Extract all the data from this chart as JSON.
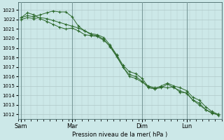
{
  "bg_color": "#cce8e8",
  "grid_color": "#b0c8c8",
  "vline_color": "#7a9a9a",
  "line_color": "#2d6a2d",
  "marker_color": "#2d6a2d",
  "xlabel": "Pression niveau de la mer( hPa )",
  "ylim": [
    1011.5,
    1023.8
  ],
  "yticks": [
    1012,
    1013,
    1014,
    1015,
    1016,
    1017,
    1018,
    1019,
    1020,
    1021,
    1022,
    1023
  ],
  "xtick_labels": [
    "Sam",
    "Mar",
    "Dim",
    "Lun"
  ],
  "xtick_positions": [
    0,
    8,
    19,
    26
  ],
  "vline_positions": [
    0,
    8,
    19,
    26
  ],
  "n_points": 32,
  "series": [
    [
      1022.2,
      1022.7,
      1022.5,
      1022.1,
      1021.8,
      1021.5,
      1021.2,
      1021.0,
      1021.1,
      1020.8,
      1020.4,
      1020.3,
      1020.2,
      1019.8,
      1019.2,
      1018.2,
      1017.0,
      1016.2,
      1016.0,
      1015.5,
      1014.8,
      1014.7,
      1014.8,
      1015.2,
      1014.8,
      1014.5,
      1014.2,
      1013.5,
      1013.0,
      1012.5,
      1012.1,
      1012.0
    ],
    [
      1022.2,
      1022.4,
      1022.3,
      1022.5,
      1022.7,
      1022.9,
      1022.8,
      1022.8,
      1022.3,
      1021.3,
      1020.8,
      1020.4,
      1020.3,
      1019.9,
      1019.1,
      1018.1,
      1017.0,
      1016.0,
      1015.8,
      1015.4,
      1015.0,
      1014.8,
      1014.9,
      1014.8,
      1014.9,
      1014.3,
      1014.3,
      1013.5,
      1013.2,
      1012.5,
      1012.2,
      1011.9
    ],
    [
      1022.0,
      1022.2,
      1022.1,
      1022.2,
      1022.1,
      1021.9,
      1021.7,
      1021.5,
      1021.3,
      1021.1,
      1020.8,
      1020.5,
      1020.4,
      1020.1,
      1019.3,
      1018.3,
      1017.2,
      1016.5,
      1016.3,
      1015.8,
      1014.9,
      1014.7,
      1015.0,
      1015.3,
      1015.0,
      1014.8,
      1014.5,
      1013.8,
      1013.5,
      1012.8,
      1012.3,
      1012.0
    ]
  ]
}
